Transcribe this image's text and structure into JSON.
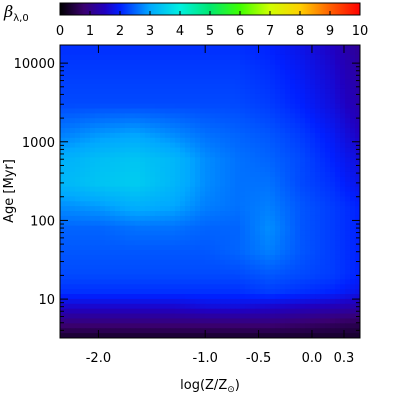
{
  "chart_data": {
    "type": "heatmap",
    "colorbar": {
      "symbol": "β",
      "subscript": "λ,0",
      "range": [
        0,
        10
      ],
      "ticks": [
        "0",
        "1",
        "2",
        "3",
        "4",
        "5",
        "6",
        "7",
        "8",
        "9",
        "10"
      ],
      "colormap": "rainbow",
      "position": "top"
    },
    "xaxis": {
      "label_main": "log(Z/Z",
      "label_sub": "⊙",
      "label_close": ")",
      "range": [
        -2.36,
        0.45
      ],
      "ticks": [
        {
          "value": -2.0,
          "label": "-2.0"
        },
        {
          "value": -1.0,
          "label": "-1.0"
        },
        {
          "value": -0.5,
          "label": "-0.5"
        },
        {
          "value": 0.0,
          "label": "0.0"
        },
        {
          "value": 0.3,
          "label": "0.3"
        }
      ]
    },
    "yaxis": {
      "label": "Age [Myr]",
      "scale": "log",
      "range": [
        3.2,
        17000
      ],
      "ticks": [
        {
          "value": 10,
          "label": "10"
        },
        {
          "value": 100,
          "label": "100"
        },
        {
          "value": 1000,
          "label": "1000"
        },
        {
          "value": 10000,
          "label": "10000"
        }
      ]
    },
    "z_description": "beta value color-coded from 0 to 10",
    "grid": false,
    "x_samples": [
      -2.36,
      -2.0,
      -1.65,
      -1.3,
      -1.0,
      -0.7,
      -0.4,
      -0.1,
      0.2,
      0.45
    ],
    "y_samples": [
      3.2,
      5,
      8,
      12,
      20,
      40,
      80,
      150,
      300,
      600,
      1200,
      3000,
      8000,
      17000
    ],
    "z": [
      [
        0.3,
        0.3,
        0.3,
        0.3,
        0.3,
        0.3,
        0.3,
        0.3,
        0.3,
        0.3
      ],
      [
        0.9,
        0.9,
        0.9,
        0.9,
        0.9,
        0.9,
        0.9,
        0.8,
        0.7,
        0.6
      ],
      [
        1.6,
        1.6,
        1.6,
        1.6,
        1.7,
        1.7,
        1.6,
        1.5,
        1.4,
        1.3
      ],
      [
        2.1,
        2.1,
        2.1,
        2.1,
        2.1,
        2.1,
        2.2,
        2.1,
        2.0,
        1.8
      ],
      [
        2.3,
        2.3,
        2.3,
        2.3,
        2.3,
        2.3,
        2.4,
        2.3,
        2.2,
        2.0
      ],
      [
        2.4,
        2.4,
        2.4,
        2.4,
        2.4,
        2.5,
        2.7,
        2.4,
        2.2,
        2.0
      ],
      [
        2.5,
        2.5,
        2.6,
        2.6,
        2.5,
        2.5,
        2.8,
        2.4,
        2.2,
        2.0
      ],
      [
        2.8,
        2.9,
        3.1,
        3.0,
        2.7,
        2.6,
        2.7,
        2.4,
        2.2,
        2.0
      ],
      [
        3.2,
        3.4,
        3.5,
        3.2,
        2.8,
        2.6,
        2.6,
        2.3,
        2.1,
        1.8
      ],
      [
        3.1,
        3.3,
        3.4,
        3.2,
        2.8,
        2.6,
        2.5,
        2.3,
        2.0,
        1.7
      ],
      [
        2.7,
        2.9,
        3.0,
        2.8,
        2.6,
        2.5,
        2.4,
        2.2,
        1.9,
        1.5
      ],
      [
        2.3,
        2.3,
        2.3,
        2.3,
        2.3,
        2.3,
        2.2,
        2.0,
        1.7,
        1.3
      ],
      [
        2.2,
        2.2,
        2.2,
        2.2,
        2.2,
        2.2,
        2.1,
        1.9,
        1.6,
        1.2
      ],
      [
        2.1,
        2.1,
        2.1,
        2.1,
        2.1,
        2.1,
        2.0,
        1.8,
        1.5,
        1.1
      ]
    ]
  }
}
